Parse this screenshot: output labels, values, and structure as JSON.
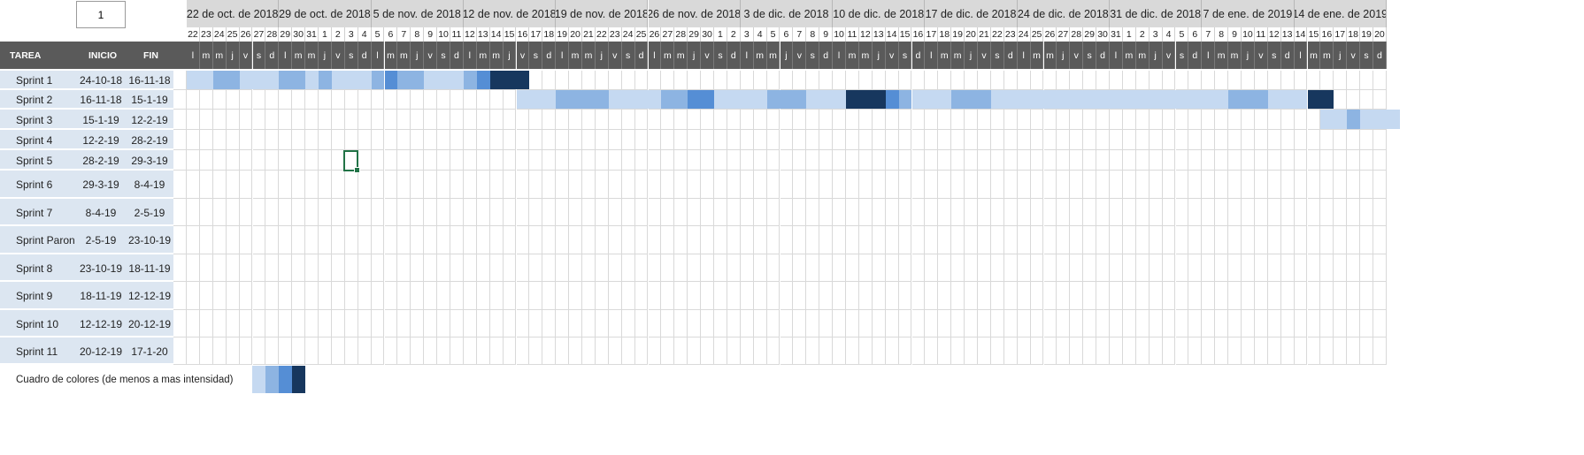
{
  "selector": {
    "value": "1"
  },
  "header": {
    "tarea": "TAREA",
    "inicio": "INICIO",
    "fin": "FIN"
  },
  "timeline": {
    "start_day": 22,
    "days": [
      22,
      23,
      24,
      25,
      26,
      27,
      28,
      29,
      30,
      31,
      1,
      2,
      3,
      4,
      5,
      6,
      7,
      8,
      9,
      10,
      11,
      12,
      13,
      14,
      15,
      16,
      17,
      18,
      19,
      20,
      21,
      22,
      23,
      24,
      25,
      26,
      27,
      28,
      29,
      30,
      1,
      2,
      3,
      4,
      5,
      6,
      7,
      8,
      9,
      10,
      11,
      12,
      13,
      14,
      15,
      16,
      17,
      18,
      19,
      20,
      21,
      22,
      23,
      24,
      25,
      26,
      27,
      28,
      29,
      30,
      31,
      1,
      2,
      3,
      4,
      5,
      6,
      7,
      8,
      9,
      10,
      11,
      12,
      13,
      14,
      15,
      16,
      17,
      18,
      19,
      20
    ],
    "weekday_letters": [
      "l",
      "m",
      "m",
      "j",
      "v",
      "s",
      "d"
    ],
    "weeks": [
      "22 de oct. de 2018",
      "29 de oct. de 2018",
      "5 de nov. de 2018",
      "12 de nov. de 2018",
      "19 de nov. de 2018",
      "26 de nov. de 2018",
      "3 de dic. de 2018",
      "10 de dic. de 2018",
      "17 de dic. de 2018",
      "24 de dic. de 2018",
      "31 de dic. de 2018",
      "7 de ene. de 2019",
      "14 de ene. de 2019"
    ]
  },
  "tasks": [
    {
      "name": "Sprint 1",
      "inicio": "24-10-18",
      "fin": "16-11-18"
    },
    {
      "name": "Sprint 2",
      "inicio": "16-11-18",
      "fin": "15-1-19"
    },
    {
      "name": "Sprint 3",
      "inicio": "15-1-19",
      "fin": "12-2-19"
    },
    {
      "name": "Sprint 4",
      "inicio": "12-2-19",
      "fin": "28-2-19"
    },
    {
      "name": "Sprint 5",
      "inicio": "28-2-19",
      "fin": "29-3-19"
    },
    {
      "name": "Sprint 6",
      "inicio": "29-3-19",
      "fin": "8-4-19"
    },
    {
      "name": "Sprint 7",
      "inicio": "8-4-19",
      "fin": "2-5-19"
    },
    {
      "name": "Sprint Paron",
      "inicio": "2-5-19",
      "fin": "23-10-19"
    },
    {
      "name": "Sprint 8",
      "inicio": "23-10-19",
      "fin": "18-11-19"
    },
    {
      "name": "Sprint 9",
      "inicio": "18-11-19",
      "fin": "12-12-19"
    },
    {
      "name": "Sprint 10",
      "inicio": "12-12-19",
      "fin": "20-12-19"
    },
    {
      "name": "Sprint 11",
      "inicio": "20-12-19",
      "fin": "17-1-20"
    }
  ],
  "intensity_colors": [
    "#c5d9f1",
    "#8db4e2",
    "#558ed5",
    "#17375e"
  ],
  "gantt": [
    {
      "task": "Sprint 1",
      "segments": [
        {
          "from": 0,
          "to": 1,
          "level": 0
        },
        {
          "from": 2,
          "to": 3,
          "level": 1
        },
        {
          "from": 4,
          "to": 6,
          "level": 0
        },
        {
          "from": 7,
          "to": 8,
          "level": 1
        },
        {
          "from": 9,
          "to": 9,
          "level": 0
        },
        {
          "from": 10,
          "to": 10,
          "level": 1
        },
        {
          "from": 11,
          "to": 13,
          "level": 0
        },
        {
          "from": 14,
          "to": 14,
          "level": 1
        },
        {
          "from": 15,
          "to": 15,
          "level": 2
        },
        {
          "from": 16,
          "to": 17,
          "level": 1
        },
        {
          "from": 18,
          "to": 20,
          "level": 0
        },
        {
          "from": 21,
          "to": 21,
          "level": 1
        },
        {
          "from": 22,
          "to": 22,
          "level": 2
        },
        {
          "from": 23,
          "to": 25,
          "level": 3
        }
      ]
    },
    {
      "task": "Sprint 2",
      "segments": [
        {
          "from": 25,
          "to": 27,
          "level": 0
        },
        {
          "from": 28,
          "to": 31,
          "level": 1
        },
        {
          "from": 32,
          "to": 35,
          "level": 0
        },
        {
          "from": 36,
          "to": 37,
          "level": 1
        },
        {
          "from": 38,
          "to": 39,
          "level": 2
        },
        {
          "from": 40,
          "to": 43,
          "level": 0
        },
        {
          "from": 44,
          "to": 46,
          "level": 1
        },
        {
          "from": 47,
          "to": 49,
          "level": 0
        },
        {
          "from": 50,
          "to": 52,
          "level": 3
        },
        {
          "from": 53,
          "to": 53,
          "level": 2
        },
        {
          "from": 54,
          "to": 54,
          "level": 1
        },
        {
          "from": 55,
          "to": 57,
          "level": 0
        },
        {
          "from": 58,
          "to": 60,
          "level": 1
        },
        {
          "from": 61,
          "to": 78,
          "level": 0
        },
        {
          "from": 79,
          "to": 81,
          "level": 1
        },
        {
          "from": 82,
          "to": 84,
          "level": 0
        },
        {
          "from": 85,
          "to": 86,
          "level": 3
        }
      ]
    },
    {
      "task": "Sprint 3",
      "segments": [
        {
          "from": 86,
          "to": 87,
          "level": 0
        },
        {
          "from": 88,
          "to": 88,
          "level": 1
        },
        {
          "from": 89,
          "to": 91,
          "level": 0
        }
      ]
    }
  ],
  "legend": {
    "label": "Cuadro de colores (de menos a mas intensidad)"
  }
}
